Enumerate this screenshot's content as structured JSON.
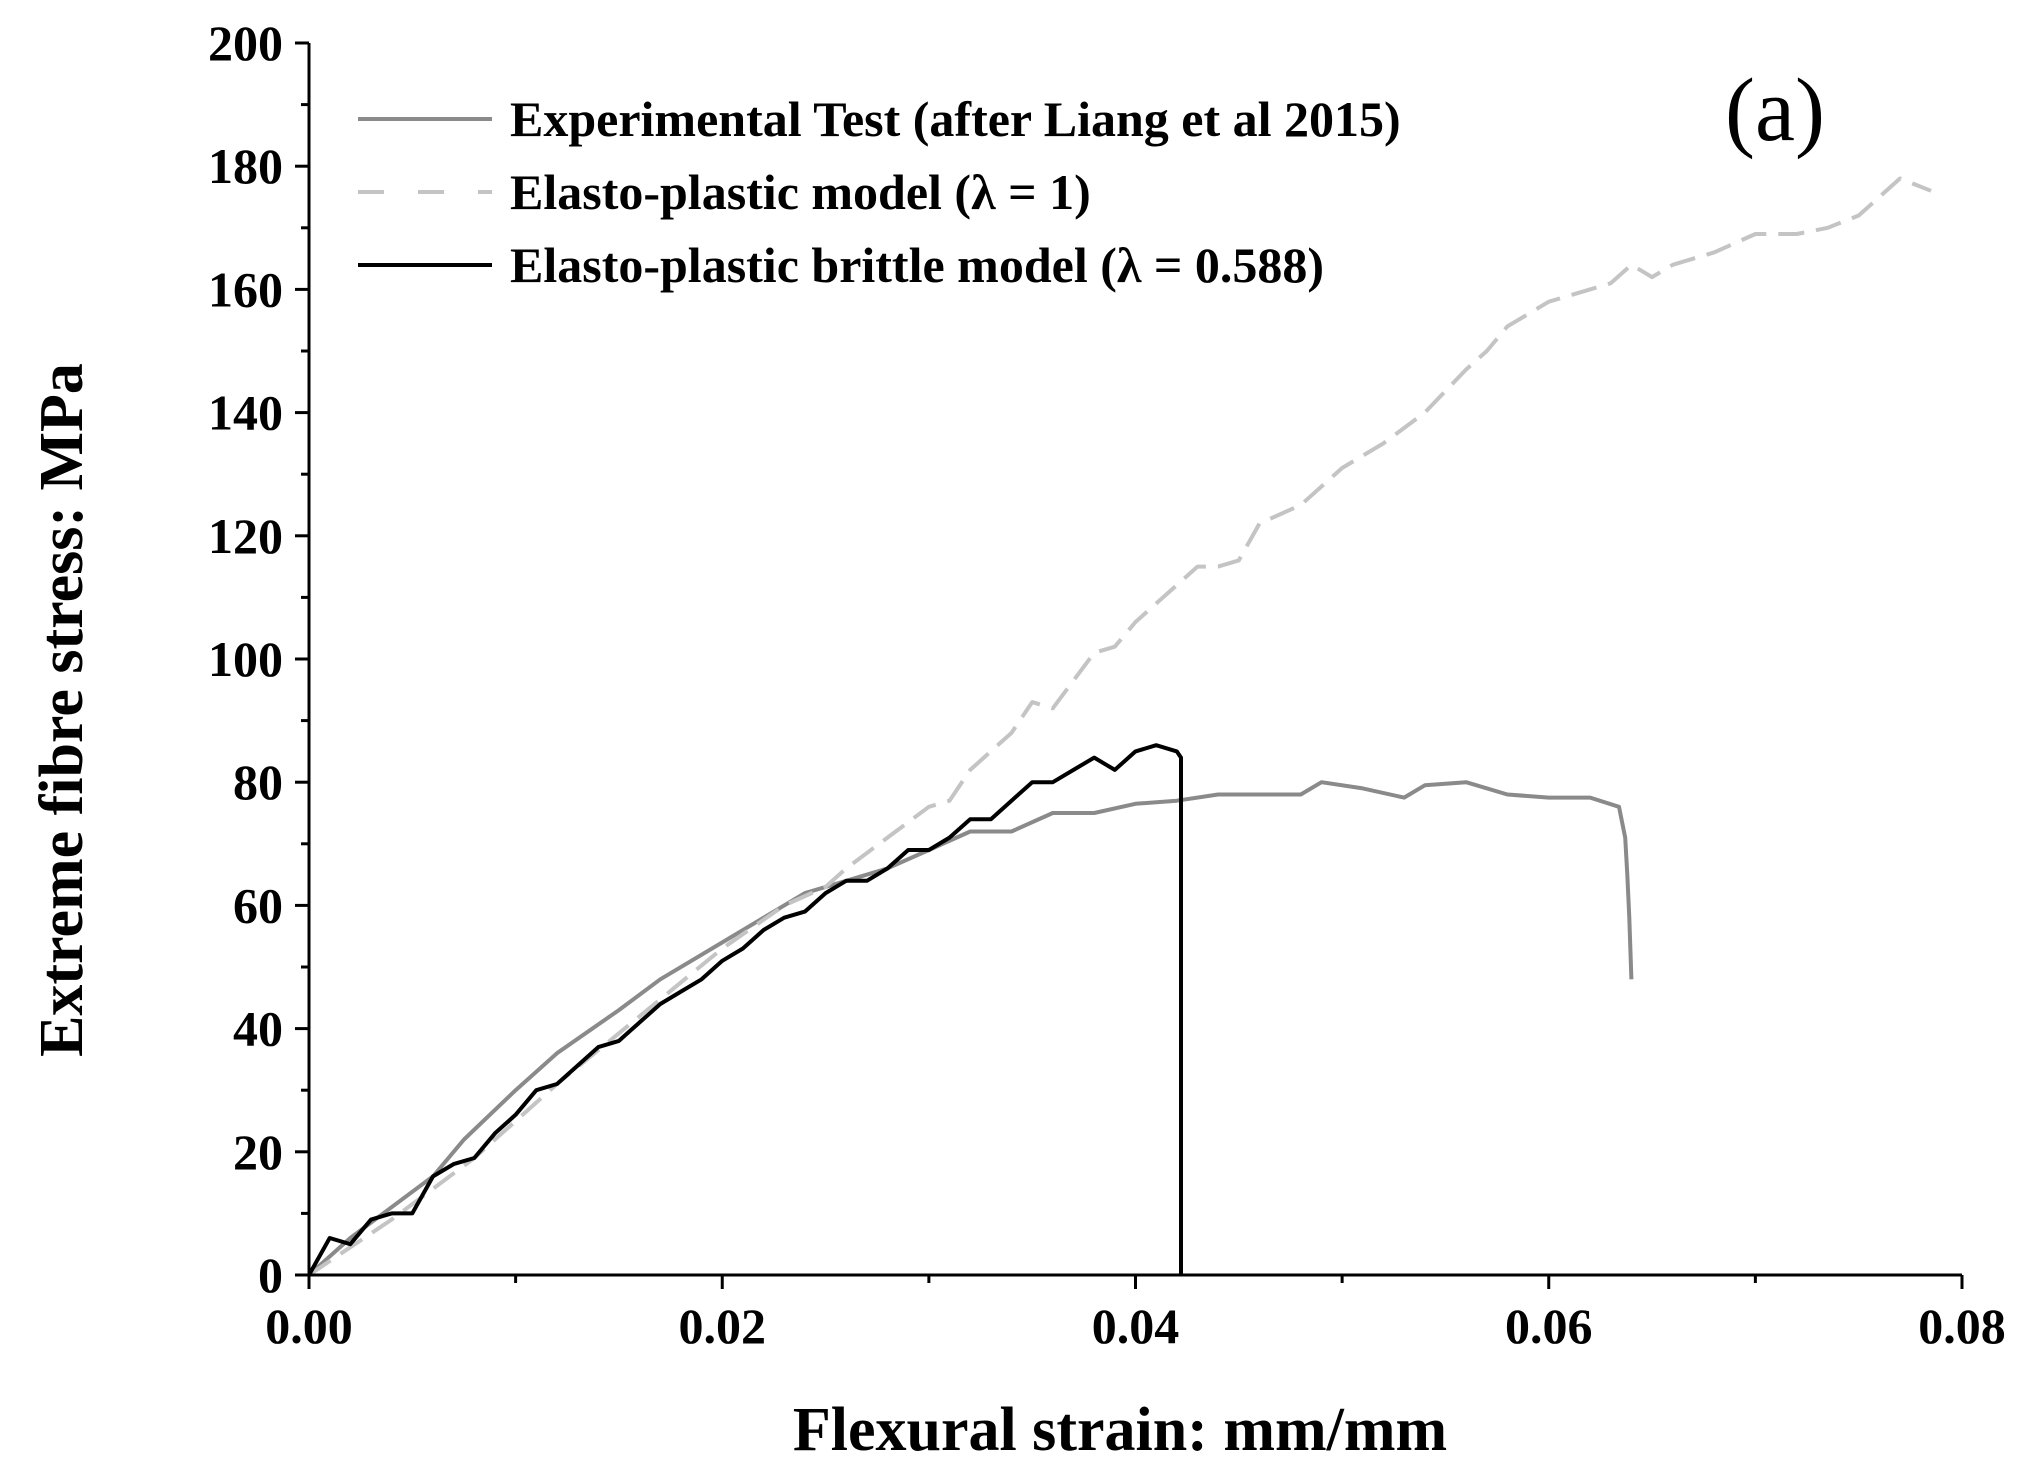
{
  "chart_data": {
    "type": "line",
    "title": "",
    "panel_label": "(a)",
    "xlabel": "Flexural strain: mm/mm",
    "ylabel": "Extreme fibre stress: MPa",
    "xlim": [
      0,
      0.08
    ],
    "ylim": [
      0,
      200
    ],
    "xticks": [
      0,
      0.02,
      0.04,
      0.06,
      0.08
    ],
    "xtick_labels": [
      "0.00",
      "0.02",
      "0.04",
      "0.06",
      "0.08"
    ],
    "yticks": [
      0,
      20,
      40,
      60,
      80,
      100,
      120,
      140,
      160,
      180,
      200
    ],
    "ytick_labels": [
      "0",
      "20",
      "40",
      "60",
      "80",
      "100",
      "120",
      "140",
      "160",
      "180",
      "200"
    ],
    "legend_position": "top-left",
    "series": [
      {
        "name": "Experimental Test (after Liang et al 2015)",
        "color": "#8a8a8a",
        "style": "solid",
        "x": [
          0,
          0.002,
          0.004,
          0.006,
          0.0075,
          0.01,
          0.012,
          0.015,
          0.017,
          0.02,
          0.022,
          0.024,
          0.026,
          0.028,
          0.03,
          0.032,
          0.034,
          0.036,
          0.038,
          0.04,
          0.042,
          0.044,
          0.046,
          0.048,
          0.049,
          0.051,
          0.053,
          0.054,
          0.056,
          0.058,
          0.06,
          0.062,
          0.0634,
          0.0637,
          0.0638,
          0.0639,
          0.064
        ],
        "y": [
          0,
          6,
          11,
          16,
          22,
          30,
          36,
          43,
          48,
          54,
          58,
          62,
          64,
          66,
          69,
          72,
          72,
          75,
          75,
          76.5,
          77,
          78,
          78,
          78,
          80,
          79,
          77.5,
          79.5,
          80,
          78,
          77.5,
          77.5,
          76,
          71,
          65,
          58,
          48
        ]
      },
      {
        "name": "Elasto-plastic model (λ = 1)",
        "color": "#c4c4c4",
        "style": "dashed",
        "x": [
          0,
          0.004,
          0.008,
          0.012,
          0.016,
          0.02,
          0.023,
          0.025,
          0.026,
          0.028,
          0.03,
          0.031,
          0.032,
          0.034,
          0.035,
          0.036,
          0.038,
          0.039,
          0.04,
          0.042,
          0.043,
          0.044,
          0.045,
          0.046,
          0.048,
          0.05,
          0.052,
          0.054,
          0.056,
          0.057,
          0.058,
          0.06,
          0.062,
          0.063,
          0.064,
          0.065,
          0.066,
          0.068,
          0.07,
          0.072,
          0.0735,
          0.075,
          0.077,
          0.0785
        ],
        "y": [
          0,
          9,
          19,
          31,
          42,
          53,
          60,
          63,
          66,
          71,
          76,
          77,
          82,
          88,
          93,
          92,
          101,
          102,
          106,
          112,
          115,
          115,
          116,
          122,
          125,
          131,
          135,
          140,
          147,
          150,
          154,
          158,
          160,
          161,
          164,
          162,
          164,
          166,
          169,
          169,
          170,
          172,
          178,
          176
        ]
      },
      {
        "name": "Elasto-plastic brittle model (λ = 0.588)",
        "color": "#000000",
        "style": "solid",
        "x": [
          0,
          0.001,
          0.002,
          0.003,
          0.004,
          0.005,
          0.006,
          0.007,
          0.008,
          0.009,
          0.01,
          0.011,
          0.012,
          0.013,
          0.014,
          0.015,
          0.016,
          0.017,
          0.018,
          0.019,
          0.02,
          0.021,
          0.022,
          0.023,
          0.024,
          0.025,
          0.026,
          0.027,
          0.028,
          0.029,
          0.03,
          0.031,
          0.032,
          0.033,
          0.034,
          0.035,
          0.036,
          0.037,
          0.038,
          0.039,
          0.04,
          0.041,
          0.0415,
          0.042,
          0.0422,
          0.0422
        ],
        "y": [
          0,
          6,
          5,
          9,
          10,
          10,
          16,
          18,
          19,
          23,
          26,
          30,
          31,
          34,
          37,
          38,
          41,
          44,
          46,
          48,
          51,
          53,
          56,
          58,
          59,
          62,
          64,
          64,
          66,
          69,
          69,
          71,
          74,
          74,
          77,
          80,
          80,
          82,
          84,
          82,
          85,
          86,
          85.5,
          85,
          84,
          0
        ]
      }
    ]
  }
}
